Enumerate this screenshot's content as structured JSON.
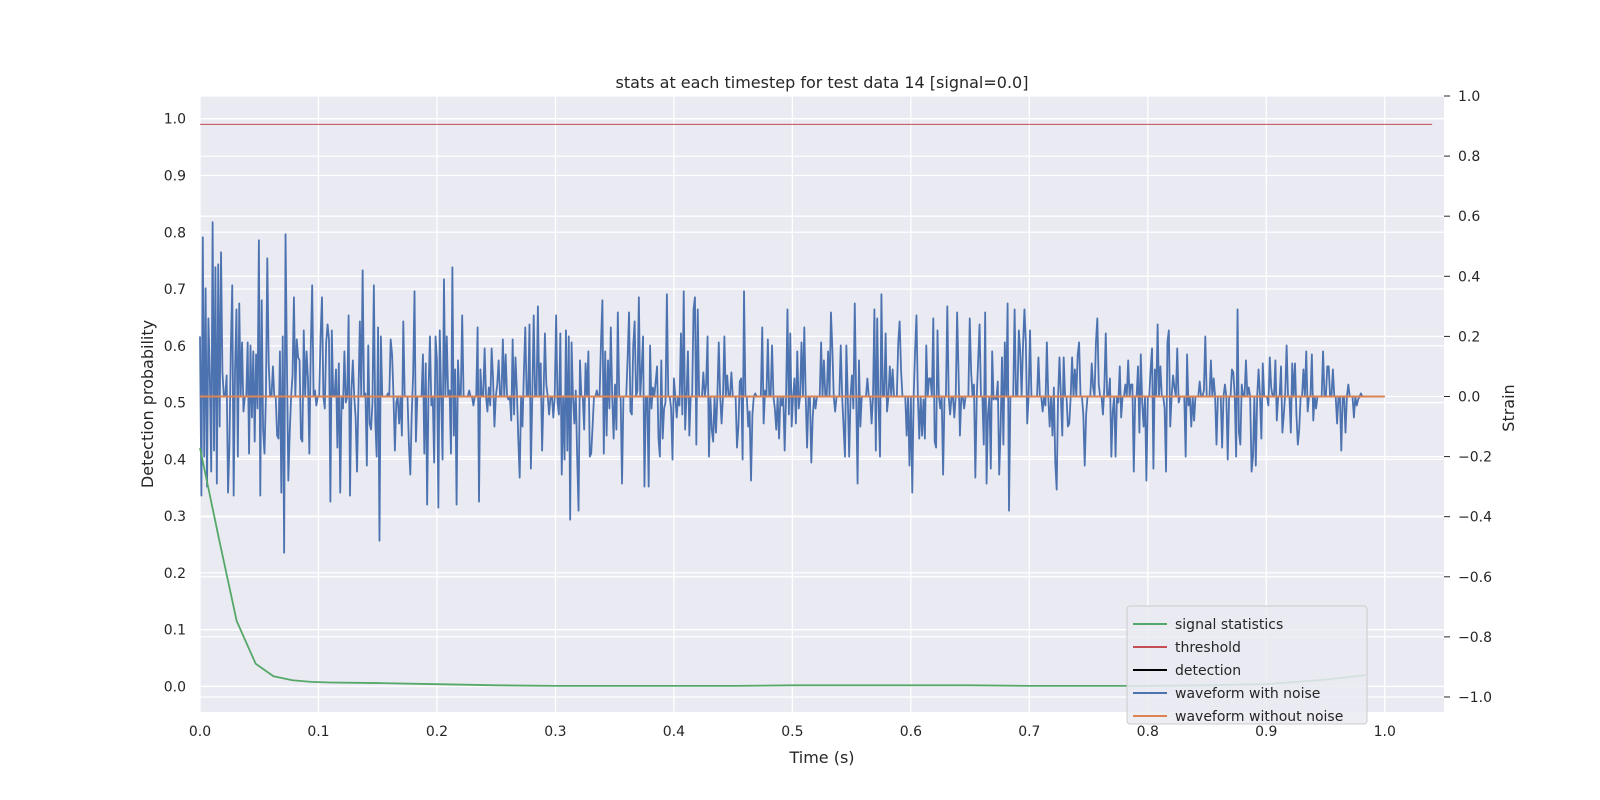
{
  "chart_data": {
    "type": "line",
    "title": "stats at each timestep for test data 14 [signal=0.0]",
    "xlabel": "Time (s)",
    "ylabel_left": "Detection probability",
    "ylabel_right": "Strain",
    "xlim": [
      0.0,
      1.05
    ],
    "ylim_left": [
      -0.045,
      1.04
    ],
    "ylim_right": [
      -1.05,
      1.0
    ],
    "x_ticks": [
      "0.0",
      "0.1",
      "0.2",
      "0.3",
      "0.4",
      "0.5",
      "0.6",
      "0.7",
      "0.8",
      "0.9",
      "1.0"
    ],
    "y_left_ticks": [
      "0.0",
      "0.1",
      "0.2",
      "0.3",
      "0.4",
      "0.5",
      "0.6",
      "0.7",
      "0.8",
      "0.9",
      "1.0"
    ],
    "y_right_ticks": [
      "−1.0",
      "−0.8",
      "−0.6",
      "−0.4",
      "−0.2",
      "0.0",
      "0.2",
      "0.4",
      "0.6",
      "0.8",
      "1.0"
    ],
    "grid": true,
    "legend_position": "lower-right",
    "series": [
      {
        "name": "signal statistics",
        "axis": "left",
        "color": "#55a868",
        "x": [
          0.0,
          0.016,
          0.031,
          0.047,
          0.062,
          0.078,
          0.094,
          0.11,
          0.15,
          0.2,
          0.25,
          0.3,
          0.35,
          0.4,
          0.45,
          0.5,
          0.55,
          0.6,
          0.65,
          0.7,
          0.75,
          0.8,
          0.85,
          0.9,
          0.95,
          0.984
        ],
        "y": [
          0.42,
          0.26,
          0.115,
          0.04,
          0.018,
          0.011,
          0.008,
          0.007,
          0.006,
          0.004,
          0.002,
          0.001,
          0.001,
          0.001,
          0.001,
          0.002,
          0.002,
          0.002,
          0.002,
          0.001,
          0.001,
          0.001,
          0.002,
          0.004,
          0.012,
          0.02
        ]
      },
      {
        "name": "threshold",
        "axis": "left",
        "color": "#c44e52",
        "x": [
          0.0,
          1.04
        ],
        "y": [
          0.99,
          0.99
        ]
      },
      {
        "name": "detection",
        "axis": "left",
        "color": "#000000",
        "x": [],
        "y": []
      },
      {
        "name": "waveform with noise",
        "axis": "right",
        "color": "#4c72b0",
        "x_range": [
          0.0,
          1.0
        ],
        "y": [
          0.2,
          -0.33,
          0.53,
          -0.2,
          0.36,
          -0.3,
          0.26,
          0.07,
          -0.25,
          0.58,
          -0.18,
          0.43,
          -0.29,
          0.44,
          -0.1,
          0.48,
          0.08,
          0.0,
          0.0,
          0.07,
          -0.32,
          -0.16,
          0.16,
          0.37,
          -0.33,
          0.09,
          0.29,
          -0.2,
          0.31,
          0.0,
          0.18,
          -0.05,
          0.0,
          0.0,
          0.18,
          -0.19,
          0.17,
          -0.07,
          0.15,
          -0.15,
          0.14,
          -0.04,
          0.52,
          -0.33,
          0.32,
          -0.11,
          -0.19,
          0.0,
          0.46,
          0.11,
          0.0,
          0.0,
          0.1,
          0.0,
          0.0,
          -0.13,
          -0.14,
          0.15,
          -0.32,
          0.2,
          -0.52,
          0.54,
          0.11,
          -0.28,
          -0.12,
          0.0,
          0.07,
          0.33,
          0.0,
          0.19,
          0.13,
          0.12,
          -0.14,
          -0.15,
          0.22,
          0.0,
          0.15,
          0.06,
          -0.19,
          0.16,
          0.37,
          0.0,
          0.02,
          -0.03,
          0.0,
          0.0,
          0.2,
          0.33,
          0.0,
          -0.04,
          0.18,
          0.24,
          0.19,
          -0.35,
          0.22,
          0.0,
          0.0,
          0.09,
          -0.17,
          0.11,
          -0.32,
          0.0,
          -0.04,
          0.15,
          -0.02,
          0.0,
          0.27,
          -0.33,
          0.02,
          0.12,
          0.0,
          -0.07,
          -0.25,
          0.0,
          0.25,
          0.0,
          0.42,
          0.0,
          0.01,
          -0.23,
          0.17,
          -0.09,
          -0.11,
          -0.02,
          0.37,
          -0.08,
          -0.2,
          0.23,
          -0.48,
          0.2,
          0.0,
          0.0,
          0.0,
          0.0,
          0.01,
          0.0,
          0.19,
          0.14,
          0.0,
          -0.18,
          -0.02,
          0.0,
          -0.09,
          0.0,
          -0.13,
          0.25,
          0.0,
          0.0,
          0.0,
          -0.16,
          -0.26,
          -0.06,
          0.07,
          0.35,
          -0.15,
          0.0,
          0.0,
          0.0,
          0.0,
          0.14,
          -0.19,
          0.11,
          -0.36,
          0.02,
          0.2,
          -0.03,
          0.0,
          -0.22,
          0.2,
          0.12,
          -0.37,
          0.22,
          0.0,
          -0.21,
          0.39,
          0.0,
          0.2,
          0.0,
          0.02,
          -0.19,
          0.43,
          -0.13,
          0.09,
          -0.36,
          0.12,
          0.0,
          0.0,
          0.27,
          0.0,
          0.0,
          0.0,
          0.0,
          0.02,
          0.0,
          0.0,
          -0.03,
          0.0,
          0.0,
          0.23,
          -0.35,
          0.09,
          0.0,
          0.0,
          0.16,
          0.0,
          -0.05,
          0.03,
          -0.03,
          0.16,
          0.06,
          -0.1,
          0.0,
          0.04,
          0.12,
          0.0,
          0.0,
          0.19,
          0.0,
          0.14,
          0.0,
          -0.01,
          0.0,
          -0.08,
          0.19,
          -0.06,
          0.13,
          0.02,
          -0.14,
          -0.27,
          0.0,
          -0.1,
          0.08,
          0.23,
          0.0,
          0.0,
          0.24,
          -0.24,
          0.0,
          0.27,
          0.0,
          0.0,
          0.3,
          0.0,
          0.11,
          -0.18,
          0.0,
          0.21,
          0.04,
          0.0,
          -0.06,
          0.0,
          0.0,
          -0.07,
          0.0,
          0.27,
          -0.02,
          -0.06,
          0.21,
          -0.26,
          0.0,
          -0.21,
          0.22,
          -0.18,
          0.2,
          -0.41,
          0.18,
          0.0,
          -0.09,
          0.02,
          -0.2,
          -0.38,
          0.12,
          0.0,
          0.0,
          -0.11,
          0.11,
          0.0,
          0.15,
          -0.2,
          -0.19,
          -0.1,
          0.0,
          0.0,
          0.02,
          0.0,
          0.0,
          0.18,
          0.32,
          -0.19,
          0.15,
          -0.13,
          0.12,
          -0.04,
          0.23,
          0.0,
          -0.14,
          0.04,
          -0.11,
          0.28,
          0.0,
          0.0,
          -0.29,
          0.0,
          0.0,
          0.0,
          0.13,
          0.28,
          -0.05,
          -0.06,
          0.17,
          0.25,
          0.0,
          0.02,
          0.33,
          0.0,
          0.09,
          0.2,
          -0.3,
          0.0,
          0.0,
          -0.3,
          0.17,
          -0.04,
          0.03,
          0.0,
          0.05,
          0.1,
          -0.14,
          -0.2,
          0.12,
          -0.14,
          -0.04,
          -0.02,
          0.34,
          0.0,
          0.0,
          -0.04,
          -0.21,
          0.06,
          0.0,
          -0.07,
          0.0,
          -0.03,
          0.21,
          -0.06,
          0.35,
          -0.11,
          0.0,
          0.15,
          -0.13,
          0.0,
          0.0,
          0.29,
          0.33,
          -0.16,
          0.29,
          0.0,
          0.0,
          0.0,
          0.08,
          0.0,
          0.04,
          0.2,
          -0.2,
          0.0,
          -0.11,
          -0.15,
          0.0,
          -0.12,
          0.0,
          0.18,
          0.0,
          -0.09,
          0.0,
          0.2,
          0.0,
          0.07,
          0.0,
          0.0,
          0.08,
          0.0,
          0.0,
          0.0,
          -0.17,
          -0.1,
          0.05,
          0.06,
          -0.21,
          0.35,
          0.0,
          0.0,
          -0.1,
          -0.05,
          -0.28,
          -0.06,
          0.0,
          0.01,
          0.0,
          0.0,
          0.0,
          0.0,
          0.23,
          -0.09,
          0.02,
          0.0,
          0.19,
          0.0,
          0.0,
          0.17,
          0.0,
          -0.04,
          -0.11,
          0.0,
          -0.14,
          0.0,
          -0.03,
          0.0,
          -0.18,
          0.0,
          0.29,
          -0.06,
          0.21,
          -0.1,
          0.0,
          0.06,
          -0.09,
          0.15,
          -0.04,
          0.0,
          0.18,
          0.0,
          0.23,
          0.0,
          -0.17,
          0.0,
          0.0,
          -0.22,
          -0.07,
          0.0,
          -0.04,
          0.0,
          0.0,
          0.0,
          0.18,
          0.0,
          0.12,
          0.0,
          0.0,
          0.15,
          0.0,
          0.28,
          0.16,
          0.0,
          -0.05,
          0.0,
          0.0,
          0.0,
          0.17,
          0.0,
          -0.1,
          -0.2,
          0.17,
          0.0,
          -0.2,
          0.0,
          0.07,
          -0.04,
          0.31,
          0.0,
          -0.29,
          0.12,
          -0.1,
          0.0,
          0.0,
          0.0,
          0.0,
          0.06,
          0.0,
          0.0,
          -0.09,
          0.0,
          0.29,
          -0.18,
          0.26,
          -0.03,
          -0.2,
          0.34,
          0.0,
          0.0,
          0.21,
          -0.05,
          0.0,
          0.1,
          0.0,
          0.09,
          0.0,
          0.0,
          0.0,
          0.18,
          0.25,
          0.09,
          0.0,
          0.0,
          0.0,
          -0.13,
          0.0,
          -0.23,
          0.0,
          -0.32,
          0.0,
          0.15,
          0.27,
          0.0,
          -0.14,
          0.0,
          -0.13,
          -0.01,
          -0.14,
          0.17,
          0.0,
          0.06,
          0.06,
          0.0,
          0.26,
          -0.15,
          -0.17,
          0.22,
          0.0,
          -0.04,
          0.0,
          -0.26,
          0.0,
          0.0,
          0.3,
          0.0,
          -0.06,
          0.0,
          0.0,
          -0.07,
          0.0,
          0.28,
          0.08,
          -0.13,
          0.0,
          0.0,
          -0.04,
          0.0,
          0.0,
          0.0,
          0.26,
          0.08,
          0.0,
          0.04,
          -0.27,
          0.0,
          0.12,
          0.24,
          0.0,
          0.0,
          -0.16,
          0.28,
          -0.29,
          -0.06,
          0.0,
          -0.24,
          0.15,
          -0.01,
          0.0,
          -0.01,
          0.05,
          -0.26,
          -0.11,
          0.13,
          -0.16,
          0.18,
          0.0,
          0.31,
          -0.38,
          0.0,
          0.0,
          0.0,
          0.29,
          0.0,
          0.0,
          0.22,
          0.15,
          0.0,
          0.17,
          0.29,
          0.18,
          -0.09,
          0.0,
          0.22,
          0.0,
          0.0,
          0.0,
          0.0,
          0.0,
          0.13,
          0.0,
          0.0,
          -0.05,
          0.0,
          -0.03,
          0.18,
          0.0,
          -0.1,
          0.0,
          -0.13,
          0.03,
          -0.22,
          -0.31,
          0.0,
          0.13,
          0.0,
          -0.13,
          0.13,
          0.0,
          0.0,
          -0.1,
          -0.09,
          0.0,
          0.13,
          0.0,
          0.09,
          0.0,
          0.14,
          0.18,
          0.0,
          0.0,
          -0.06,
          -0.23,
          -0.06,
          0.0,
          0.0,
          0.0,
          0.11,
          0.03,
          0.0,
          0.18,
          0.26,
          0.04,
          0.0,
          0.0,
          -0.06,
          0.03,
          0.21,
          0.0,
          0.0,
          0.06,
          -0.2,
          -0.05,
          0.0,
          -0.2,
          0.0,
          -0.02,
          0.1,
          -0.07,
          0.0,
          0.0,
          0.04,
          0.0,
          0.12,
          0.0,
          0.04,
          0.04,
          -0.25,
          0.0,
          0.0,
          0.1,
          -0.12,
          0.14,
          -0.02,
          -0.1,
          0.0,
          -0.28,
          0.0,
          0.0,
          0.09,
          0.16,
          -0.24,
          0.09,
          0.0,
          0.24,
          0.0,
          0.1,
          0.0,
          0.0,
          -0.04,
          -0.25,
          0.18,
          0.22,
          -0.1,
          0.0,
          0.07,
          0.03,
          0.0,
          0.16,
          -0.02,
          0.0,
          0.0,
          0.0,
          0.0,
          -0.2,
          0.14,
          -0.03,
          0.0,
          -0.1,
          0.0,
          -0.08,
          0.0,
          0.0,
          0.0,
          0.05,
          0.0,
          0.0,
          0.02,
          0.2,
          0.0,
          0.0,
          0.0,
          0.12,
          0.0,
          0.06,
          0.0,
          -0.16,
          0.0,
          0.0,
          0.0,
          -0.17,
          0.0,
          0.04,
          0.0,
          -0.21,
          0.0,
          0.0,
          0.09,
          0.08,
          0.0,
          -0.2,
          0.29,
          -0.12,
          -0.16,
          0.04,
          0.0,
          0.0,
          0.12,
          0.0,
          0.03,
          0.0,
          -0.25,
          -0.2,
          0.0,
          -0.23,
          0.0,
          0.09,
          0.0,
          -0.14,
          0.11,
          0.0,
          0.0,
          0.0,
          -0.03,
          0.13,
          0.03,
          0.0,
          0.0,
          0.12,
          -0.08,
          0.0,
          0.0,
          0.1,
          -0.12,
          -0.06,
          0.01,
          0.17,
          0.0,
          0.0,
          -0.12,
          0.11,
          0.0,
          0.11,
          -0.06,
          -0.16,
          -0.11,
          0.0,
          0.0,
          0.09,
          0.0,
          0.15,
          -0.05,
          0.0,
          0.0,
          0.14,
          -0.08,
          0.0,
          -0.04,
          0.0,
          0.0,
          0.0,
          0.0,
          0.15,
          0.0,
          0.0,
          0.1,
          0.1,
          0.0,
          0.0,
          0.09,
          0.0,
          0.0,
          -0.09,
          0.0,
          0.0,
          -0.18,
          0.0,
          0.0,
          -0.12,
          0.0,
          0.04,
          0.0,
          0.0,
          0.0,
          -0.07,
          0.0,
          -0.03,
          -0.01,
          0.0,
          0.01,
          0.0,
          0.0,
          0.0,
          0.0,
          0.0,
          0.0,
          0.0,
          0.0,
          0.0,
          0.0,
          0.0,
          0.0,
          0.0,
          0.0,
          0.0,
          0.0,
          0.0
        ]
      },
      {
        "name": "waveform without noise",
        "axis": "right",
        "color": "#dd8452",
        "x": [
          0.0,
          1.0
        ],
        "y": [
          0.0,
          0.0
        ]
      }
    ]
  }
}
